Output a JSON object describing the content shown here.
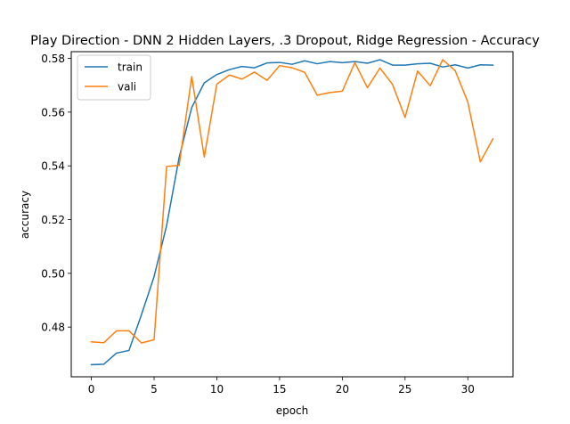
{
  "chart_data": {
    "type": "line",
    "title": "Play Direction - DNN 2 Hidden Layers, .3 Dropout, Ridge Regression - Accuracy",
    "xlabel": "epoch",
    "ylabel": "accuracy",
    "xlim": [
      -1.6,
      33.6
    ],
    "ylim": [
      0.4615,
      0.5825
    ],
    "xticks": [
      0,
      5,
      10,
      15,
      20,
      25,
      30
    ],
    "yticks": [
      0.48,
      0.5,
      0.52,
      0.54,
      0.56,
      0.58
    ],
    "ytick_labels": [
      "0.48",
      "0.50",
      "0.52",
      "0.54",
      "0.56",
      "0.58"
    ],
    "legend_position": "top-left",
    "grid": false,
    "x": [
      0,
      1,
      2,
      3,
      4,
      5,
      6,
      7,
      8,
      9,
      10,
      11,
      12,
      13,
      14,
      15,
      16,
      17,
      18,
      19,
      20,
      21,
      22,
      23,
      24,
      25,
      26,
      27,
      28,
      29,
      30,
      31,
      32
    ],
    "series": [
      {
        "name": "train",
        "color": "#1f77b4",
        "values": [
          0.466,
          0.4662,
          0.4703,
          0.4713,
          0.4847,
          0.4988,
          0.5178,
          0.5432,
          0.5617,
          0.5709,
          0.574,
          0.5758,
          0.577,
          0.5765,
          0.5783,
          0.5785,
          0.5778,
          0.5791,
          0.578,
          0.5788,
          0.5784,
          0.5788,
          0.5782,
          0.5795,
          0.5775,
          0.5775,
          0.578,
          0.5782,
          0.5768,
          0.5776,
          0.5764,
          0.5776,
          0.5775
        ]
      },
      {
        "name": "vali",
        "color": "#ff7f0e",
        "values": [
          0.4745,
          0.4742,
          0.4786,
          0.4786,
          0.4741,
          0.4753,
          0.5398,
          0.5402,
          0.5732,
          0.5433,
          0.5704,
          0.5738,
          0.5723,
          0.5749,
          0.5718,
          0.5773,
          0.5765,
          0.5748,
          0.5663,
          0.5673,
          0.5678,
          0.5784,
          0.5691,
          0.5764,
          0.5703,
          0.558,
          0.5753,
          0.5698,
          0.5795,
          0.5754,
          0.5637,
          0.5415,
          0.5501
        ]
      }
    ]
  }
}
